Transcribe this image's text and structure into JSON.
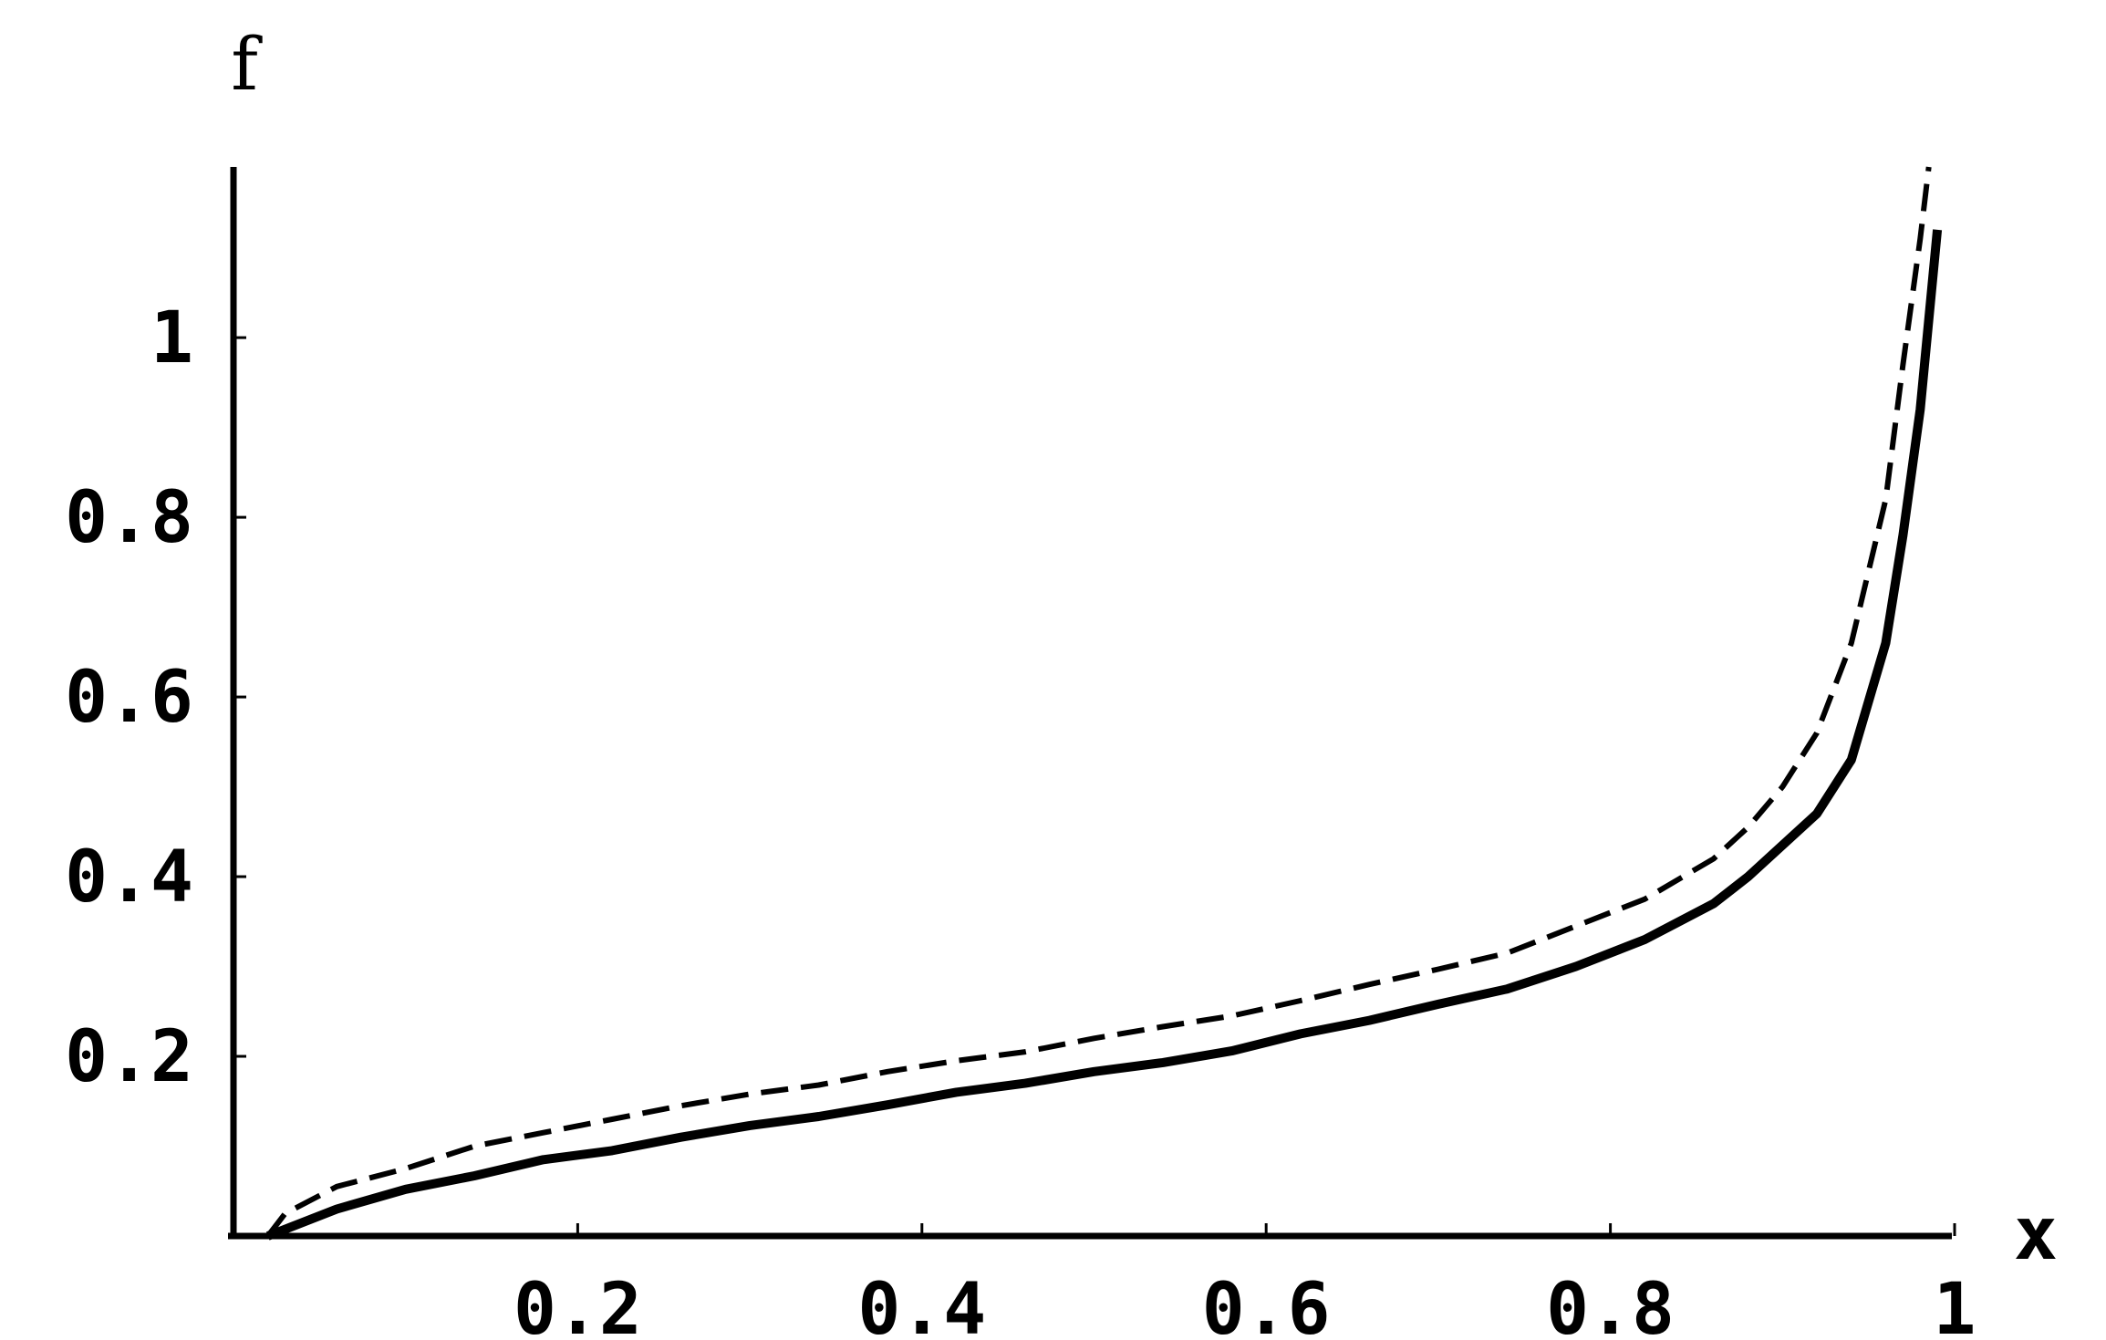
{
  "chart_data": {
    "type": "line",
    "title": "",
    "xlabel": "x",
    "ylabel": "f",
    "xlim": [
      0,
      1
    ],
    "ylim": [
      0,
      1.19
    ],
    "x_ticks": [
      0.2,
      0.4,
      0.6,
      0.8,
      1
    ],
    "x_tick_labels": [
      "0.2",
      "0.4",
      "0.6",
      "0.8",
      "1"
    ],
    "y_ticks": [
      0.2,
      0.4,
      0.6,
      0.8,
      1
    ],
    "y_tick_labels": [
      "0.2",
      "0.4",
      "0.6",
      "0.8",
      "1"
    ],
    "grid": false,
    "legend": "none",
    "series": [
      {
        "style": "solid",
        "color": "#000000",
        "x": [
          0.02,
          0.06,
          0.1,
          0.14,
          0.18,
          0.22,
          0.26,
          0.3,
          0.34,
          0.38,
          0.42,
          0.46,
          0.5,
          0.54,
          0.58,
          0.62,
          0.66,
          0.7,
          0.74,
          0.78,
          0.82,
          0.86,
          0.88,
          0.9,
          0.92,
          0.94,
          0.96,
          0.97,
          0.98,
          0.985,
          0.99
        ],
        "y": [
          0.0,
          0.03,
          0.052,
          0.067,
          0.085,
          0.095,
          0.11,
          0.123,
          0.133,
          0.146,
          0.16,
          0.17,
          0.183,
          0.193,
          0.206,
          0.225,
          0.24,
          0.258,
          0.275,
          0.3,
          0.33,
          0.37,
          0.4,
          0.435,
          0.47,
          0.53,
          0.66,
          0.78,
          0.92,
          1.02,
          1.12
        ]
      },
      {
        "style": "dashed",
        "color": "#000000",
        "x": [
          0.02,
          0.03,
          0.06,
          0.1,
          0.14,
          0.18,
          0.22,
          0.26,
          0.3,
          0.34,
          0.38,
          0.42,
          0.46,
          0.5,
          0.54,
          0.58,
          0.62,
          0.66,
          0.7,
          0.74,
          0.78,
          0.82,
          0.86,
          0.88,
          0.9,
          0.92,
          0.94,
          0.96,
          0.97,
          0.98,
          0.985
        ],
        "y": [
          0.0,
          0.025,
          0.055,
          0.075,
          0.1,
          0.115,
          0.13,
          0.145,
          0.158,
          0.168,
          0.183,
          0.195,
          0.205,
          0.22,
          0.233,
          0.245,
          0.262,
          0.28,
          0.297,
          0.315,
          0.345,
          0.375,
          0.42,
          0.455,
          0.5,
          0.56,
          0.66,
          0.82,
          0.97,
          1.11,
          1.19
        ]
      }
    ]
  }
}
